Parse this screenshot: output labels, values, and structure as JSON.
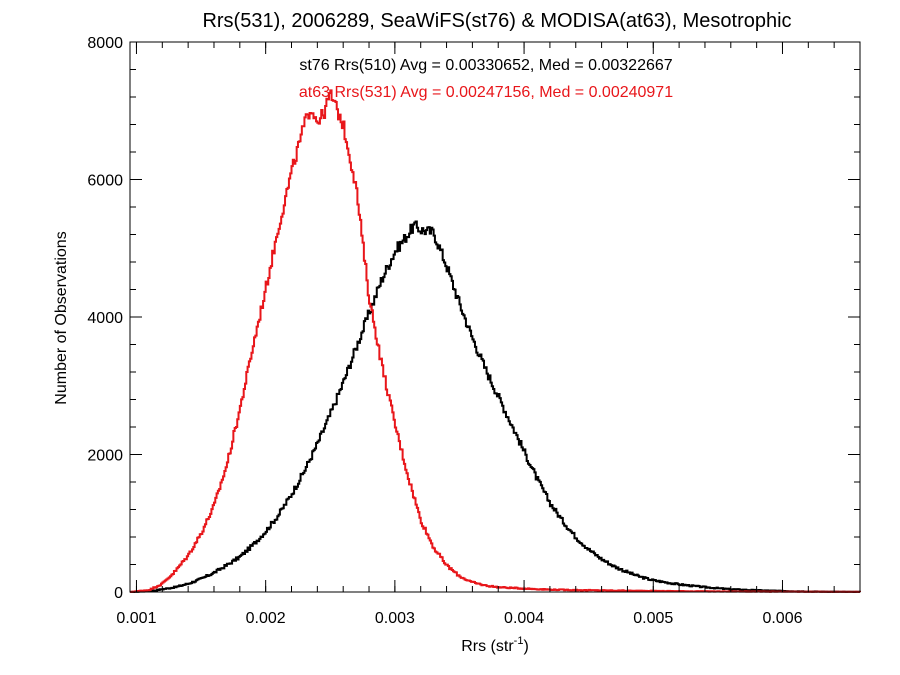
{
  "chart_data": {
    "type": "line",
    "title": "Rrs(531), 2006289, SeaWiFS(st76) & MODISA(at63), Mesotrophic",
    "xlabel": "Rrs (str",
    "xlabel_sup": "-1",
    "xlabel_close": ")",
    "ylabel": "Number of Observations",
    "xlim": [
      0.00095,
      0.0066
    ],
    "ylim": [
      0,
      8000
    ],
    "x_ticks": [
      {
        "value": 0.001,
        "label": "0.001"
      },
      {
        "value": 0.002,
        "label": "0.002"
      },
      {
        "value": 0.003,
        "label": "0.003"
      },
      {
        "value": 0.004,
        "label": "0.004"
      },
      {
        "value": 0.005,
        "label": "0.005"
      },
      {
        "value": 0.006,
        "label": "0.006"
      }
    ],
    "y_ticks": [
      {
        "value": 0,
        "label": "0"
      },
      {
        "value": 2000,
        "label": "2000"
      },
      {
        "value": 4000,
        "label": "4000"
      },
      {
        "value": 6000,
        "label": "6000"
      },
      {
        "value": 8000,
        "label": "8000"
      }
    ],
    "x_minor_step": 0.0002,
    "y_minor_step": 400,
    "grid": false,
    "annotations": [
      {
        "text": "st76 Rrs(510) Avg = 0.00330652, Med = 0.00322667",
        "color": "#000000"
      },
      {
        "text": "at63 Rrs(531) Avg = 0.00247156, Med = 0.00240971",
        "color": "#e8161a"
      }
    ],
    "series": [
      {
        "color": "#000000",
        "points": [
          [
            0.00095,
            0
          ],
          [
            0.0011,
            10
          ],
          [
            0.0012,
            40
          ],
          [
            0.0013,
            70
          ],
          [
            0.0014,
            120
          ],
          [
            0.0015,
            190
          ],
          [
            0.0016,
            280
          ],
          [
            0.0017,
            390
          ],
          [
            0.0018,
            510
          ],
          [
            0.0019,
            680
          ],
          [
            0.002,
            880
          ],
          [
            0.0021,
            1120
          ],
          [
            0.0022,
            1420
          ],
          [
            0.0023,
            1760
          ],
          [
            0.0024,
            2150
          ],
          [
            0.0025,
            2580
          ],
          [
            0.0026,
            3040
          ],
          [
            0.0027,
            3550
          ],
          [
            0.0028,
            4050
          ],
          [
            0.0029,
            4550
          ],
          [
            0.003,
            4950
          ],
          [
            0.0031,
            5200
          ],
          [
            0.00315,
            5330
          ],
          [
            0.0032,
            5270
          ],
          [
            0.0033,
            5230
          ],
          [
            0.0034,
            4750
          ],
          [
            0.0035,
            4200
          ],
          [
            0.0036,
            3700
          ],
          [
            0.0037,
            3250
          ],
          [
            0.0038,
            2850
          ],
          [
            0.0039,
            2450
          ],
          [
            0.004,
            2050
          ],
          [
            0.0041,
            1650
          ],
          [
            0.0042,
            1300
          ],
          [
            0.0043,
            1030
          ],
          [
            0.0044,
            800
          ],
          [
            0.0045,
            620
          ],
          [
            0.0046,
            480
          ],
          [
            0.0047,
            370
          ],
          [
            0.0048,
            290
          ],
          [
            0.0049,
            220
          ],
          [
            0.005,
            170
          ],
          [
            0.0052,
            110
          ],
          [
            0.0054,
            70
          ],
          [
            0.0056,
            40
          ],
          [
            0.0058,
            25
          ],
          [
            0.006,
            15
          ],
          [
            0.0062,
            8
          ],
          [
            0.0064,
            4
          ],
          [
            0.0066,
            2
          ]
        ]
      },
      {
        "color": "#e8161a",
        "points": [
          [
            0.00095,
            0
          ],
          [
            0.0011,
            30
          ],
          [
            0.0012,
            120
          ],
          [
            0.0013,
            300
          ],
          [
            0.0014,
            530
          ],
          [
            0.0015,
            850
          ],
          [
            0.0016,
            1250
          ],
          [
            0.0017,
            1850
          ],
          [
            0.0018,
            2650
          ],
          [
            0.0019,
            3550
          ],
          [
            0.002,
            4400
          ],
          [
            0.0021,
            5300
          ],
          [
            0.0022,
            6100
          ],
          [
            0.0023,
            6800
          ],
          [
            0.00235,
            7050
          ],
          [
            0.0024,
            6850
          ],
          [
            0.00245,
            6950
          ],
          [
            0.0025,
            7250
          ],
          [
            0.0026,
            6800
          ],
          [
            0.0027,
            5900
          ],
          [
            0.0028,
            4300
          ],
          [
            0.0029,
            3300
          ],
          [
            0.003,
            2450
          ],
          [
            0.0031,
            1700
          ],
          [
            0.0032,
            1050
          ],
          [
            0.0033,
            650
          ],
          [
            0.0034,
            390
          ],
          [
            0.0035,
            230
          ],
          [
            0.0036,
            140
          ],
          [
            0.0037,
            95
          ],
          [
            0.0038,
            70
          ],
          [
            0.004,
            50
          ],
          [
            0.0042,
            35
          ],
          [
            0.0045,
            25
          ],
          [
            0.005,
            15
          ],
          [
            0.0055,
            8
          ],
          [
            0.006,
            4
          ],
          [
            0.0066,
            2
          ]
        ]
      }
    ]
  }
}
